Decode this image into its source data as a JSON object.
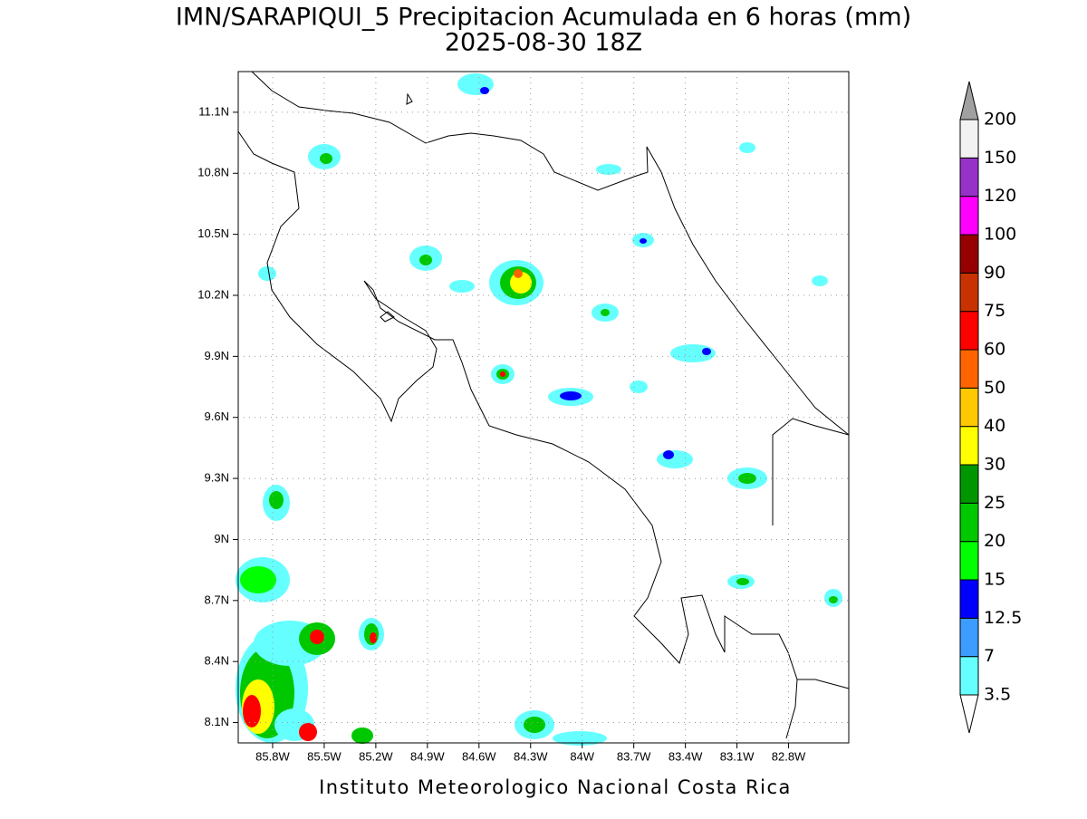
{
  "chart_data": {
    "type": "map",
    "title": "IMN/SARAPIQUI_5 Precipitacion Acumulada en 6 horas (mm)",
    "subtitle": "2025-08-30 18Z",
    "footer": "Instituto Meteorologico Nacional Costa Rica",
    "xlim": [
      -86.0,
      -82.45
    ],
    "ylim": [
      8.0,
      11.3
    ],
    "xticks": [
      {
        "value": -85.8,
        "label": "85.8W"
      },
      {
        "value": -85.5,
        "label": "85.5W"
      },
      {
        "value": -85.2,
        "label": "85.2W"
      },
      {
        "value": -84.9,
        "label": "84.9W"
      },
      {
        "value": -84.6,
        "label": "84.6W"
      },
      {
        "value": -84.3,
        "label": "84.3W"
      },
      {
        "value": -84.0,
        "label": "84W"
      },
      {
        "value": -83.7,
        "label": "83.7W"
      },
      {
        "value": -83.4,
        "label": "83.4W"
      },
      {
        "value": -83.1,
        "label": "83.1W"
      },
      {
        "value": -82.8,
        "label": "82.8W"
      }
    ],
    "yticks": [
      {
        "value": 8.1,
        "label": "8.1N"
      },
      {
        "value": 8.4,
        "label": "8.4N"
      },
      {
        "value": 8.7,
        "label": "8.7N"
      },
      {
        "value": 9.0,
        "label": "9N"
      },
      {
        "value": 9.3,
        "label": "9.3N"
      },
      {
        "value": 9.6,
        "label": "9.6N"
      },
      {
        "value": 9.9,
        "label": "9.9N"
      },
      {
        "value": 10.2,
        "label": "10.2N"
      },
      {
        "value": 10.5,
        "label": "10.5N"
      },
      {
        "value": 10.8,
        "label": "10.8N"
      },
      {
        "value": 11.1,
        "label": "11.1N"
      }
    ],
    "grid": true,
    "colorbar": {
      "levels": [
        3.5,
        7,
        12.5,
        15,
        20,
        25,
        30,
        40,
        50,
        60,
        75,
        90,
        100,
        120,
        150,
        200
      ],
      "colors": [
        "#66ffff",
        "#3c9cff",
        "#0000ff",
        "#00ff00",
        "#00c800",
        "#009600",
        "#ffff00",
        "#ffc800",
        "#ff6400",
        "#ff0000",
        "#c83200",
        "#960000",
        "#ff00ff",
        "#9632c8",
        "#f2f2f2"
      ],
      "under_color": "#ffffff",
      "over_color": "#a0a0a0"
    }
  }
}
